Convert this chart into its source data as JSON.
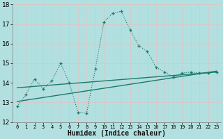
{
  "xlabel": "Humidex (Indice chaleur)",
  "bg_color": "#b2e0e0",
  "grid_color": "#c8e8e8",
  "line_color": "#1a7a6e",
  "xlim": [
    -0.5,
    23.5
  ],
  "ylim": [
    12,
    18
  ],
  "yticks": [
    12,
    13,
    14,
    15,
    16,
    17,
    18
  ],
  "xticks": [
    0,
    1,
    2,
    3,
    4,
    5,
    6,
    7,
    8,
    9,
    10,
    11,
    12,
    13,
    14,
    15,
    16,
    17,
    18,
    19,
    20,
    21,
    22,
    23
  ],
  "series1_x": [
    0,
    1,
    2,
    3,
    4,
    5,
    6,
    7,
    8,
    9,
    10,
    11,
    12,
    13,
    14,
    15,
    16,
    17,
    18,
    19,
    20,
    21,
    22,
    23
  ],
  "series1_y": [
    12.8,
    13.4,
    14.2,
    13.7,
    14.1,
    15.0,
    14.0,
    12.5,
    12.45,
    14.7,
    17.1,
    17.55,
    17.65,
    16.7,
    15.9,
    15.6,
    14.8,
    14.55,
    14.3,
    14.5,
    14.55,
    14.5,
    14.5,
    14.55
  ],
  "series2_x": [
    0,
    23
  ],
  "series2_y": [
    13.05,
    14.6
  ],
  "series3_x": [
    0,
    23
  ],
  "series3_y": [
    13.75,
    14.55
  ]
}
